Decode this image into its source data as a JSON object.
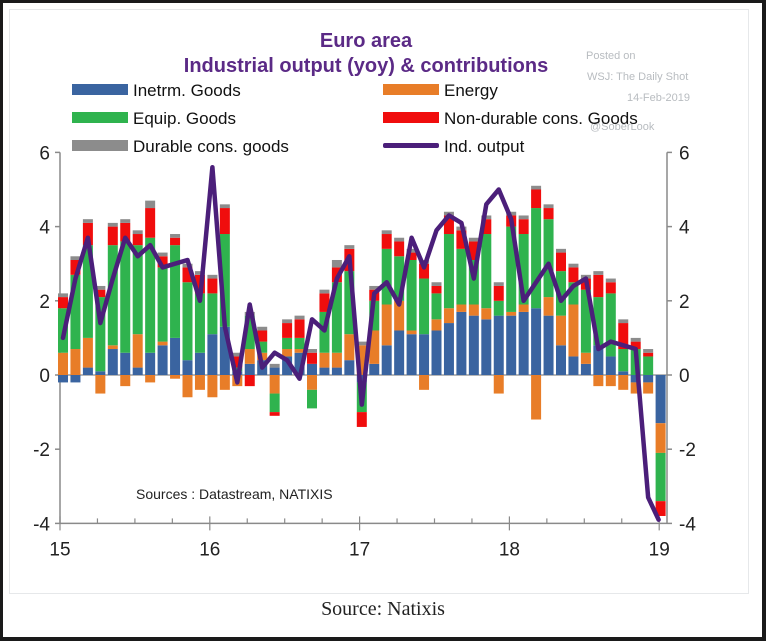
{
  "caption": "Source: Natixis",
  "watermark": {
    "line1": "Posted on",
    "line2": "WSJ: The Daily Shot",
    "line3": "14-Feb-2019",
    "line4": "@SoberLook"
  },
  "colors": {
    "intermediate": "#3a64a0",
    "energy": "#e87d28",
    "equipment": "#2fb34e",
    "nondurable": "#f00d0d",
    "durable": "#8c8c8c",
    "output_line": "#4b1f7a",
    "axis": "#8a8a8a",
    "title": "#5b2a86"
  },
  "chart_data": {
    "type": "bar",
    "stacked": true,
    "title": "Euro area",
    "subtitle": "Industrial output (yoy) & contributions",
    "source_note": "Sources : Datastream, NATIXIS",
    "xlabel": "",
    "ylabel": "",
    "ylim": [
      -4,
      6
    ],
    "yticks": [
      -4,
      -2,
      0,
      2,
      4,
      6
    ],
    "ytick_labels": [
      "-4",
      "-2",
      "0",
      "2",
      "4",
      "6"
    ],
    "xtick_labels": [
      "15",
      "16",
      "17",
      "18",
      "19"
    ],
    "x_range": [
      "2015-01",
      "2019-01"
    ],
    "grid": false,
    "legend_position": "top",
    "legend": [
      {
        "key": "intermediate",
        "label": "Inetrm. Goods",
        "kind": "bar"
      },
      {
        "key": "energy",
        "label": "Energy",
        "kind": "bar"
      },
      {
        "key": "equipment",
        "label": "Equip. Goods",
        "kind": "bar"
      },
      {
        "key": "nondurable",
        "label": "Non-durable cons. Goods",
        "kind": "bar"
      },
      {
        "key": "durable",
        "label": "Durable cons. goods",
        "kind": "bar"
      },
      {
        "key": "output",
        "label": "Ind. output",
        "kind": "line"
      }
    ],
    "categories": [
      "2015-01",
      "2015-02",
      "2015-03",
      "2015-04",
      "2015-05",
      "2015-06",
      "2015-07",
      "2015-08",
      "2015-09",
      "2015-10",
      "2015-11",
      "2015-12",
      "2016-01",
      "2016-02",
      "2016-03",
      "2016-04",
      "2016-05",
      "2016-06",
      "2016-07",
      "2016-08",
      "2016-09",
      "2016-10",
      "2016-11",
      "2016-12",
      "2017-01",
      "2017-02",
      "2017-03",
      "2017-04",
      "2017-05",
      "2017-06",
      "2017-07",
      "2017-08",
      "2017-09",
      "2017-10",
      "2017-11",
      "2017-12",
      "2018-01",
      "2018-02",
      "2018-03",
      "2018-04",
      "2018-05",
      "2018-06",
      "2018-07",
      "2018-08",
      "2018-09",
      "2018-10",
      "2018-11",
      "2018-12"
    ],
    "series": [
      {
        "name": "Inetrm. Goods",
        "key": "intermediate",
        "values": [
          -0.2,
          -0.2,
          0.2,
          0.1,
          0.7,
          0.6,
          0.2,
          0.6,
          0.8,
          1.0,
          0.4,
          0.6,
          1.1,
          1.3,
          0.1,
          0.3,
          0.4,
          0.2,
          0.5,
          0.6,
          0.3,
          0.2,
          0.2,
          0.4,
          -0.2,
          0.3,
          0.8,
          1.2,
          1.1,
          1.1,
          1.2,
          1.4,
          1.7,
          1.6,
          1.5,
          1.6,
          1.6,
          1.7,
          1.8,
          1.6,
          0.8,
          0.5,
          0.3,
          0.8,
          0.5,
          0.1,
          -0.2,
          -0.2
        ]
      },
      {
        "name": "Energy",
        "key": "energy",
        "values": [
          0.6,
          0.7,
          0.8,
          -0.5,
          0.1,
          -0.3,
          0.9,
          -0.2,
          0.1,
          -0.1,
          -0.6,
          -0.4,
          -0.6,
          -0.4,
          -0.3,
          0.4,
          0.2,
          -0.5,
          0.2,
          0.1,
          -0.4,
          0.4,
          0.4,
          0.7,
          0.8,
          0.9,
          1.1,
          0.8,
          0.1,
          -0.4,
          0.3,
          0.4,
          0.2,
          0.3,
          0.3,
          -0.5,
          0.1,
          0.2,
          -1.2,
          0.5,
          0.8,
          1.4,
          0.3,
          -0.3,
          -0.3,
          -0.4,
          -0.3,
          -0.3
        ]
      },
      {
        "name": "Equip. Goods",
        "key": "equipment",
        "values": [
          1.2,
          2.0,
          2.5,
          2.0,
          2.7,
          3.0,
          2.4,
          3.1,
          2.0,
          2.5,
          2.1,
          1.6,
          1.1,
          2.5,
          0.1,
          0.9,
          0.3,
          -0.5,
          0.3,
          0.3,
          -0.5,
          1.1,
          1.9,
          1.7,
          -0.8,
          0.8,
          1.5,
          1.2,
          1.9,
          1.5,
          0.7,
          2.0,
          1.5,
          1.2,
          2.0,
          0.4,
          2.3,
          1.9,
          2.7,
          2.1,
          1.2,
          0.6,
          1.7,
          1.3,
          1.7,
          0.6,
          0.7,
          0.5
        ]
      },
      {
        "name": "Non-durable cons. Goods",
        "key": "nondurable",
        "values": [
          0.3,
          0.4,
          0.6,
          0.2,
          0.5,
          0.5,
          0.3,
          0.8,
          0.3,
          0.2,
          0.4,
          0.5,
          0.4,
          0.7,
          0.3,
          -0.3,
          0.3,
          -0.1,
          0.4,
          0.5,
          0.3,
          0.5,
          0.4,
          0.6,
          -0.4,
          0.3,
          0.4,
          0.4,
          0.2,
          0.4,
          0.2,
          0.5,
          0.5,
          0.5,
          0.4,
          0.4,
          0.3,
          0.4,
          0.5,
          0.3,
          0.5,
          0.4,
          0.3,
          0.6,
          0.3,
          0.7,
          0.2,
          0.1
        ]
      },
      {
        "name": "Durable cons. goods",
        "key": "durable",
        "values": [
          0.1,
          0.1,
          0.1,
          0.1,
          0.1,
          0.1,
          0.1,
          0.2,
          0.1,
          0.1,
          0.1,
          0.1,
          0.1,
          0.1,
          0.1,
          0.1,
          0.1,
          0.1,
          0.1,
          0.1,
          0.1,
          0.1,
          0.2,
          0.1,
          0.1,
          0.1,
          0.1,
          0.1,
          0.1,
          0.1,
          0.1,
          0.1,
          0.1,
          0.1,
          0.1,
          0.1,
          0.1,
          0.1,
          0.1,
          0.1,
          0.1,
          0.1,
          0.1,
          0.1,
          0.1,
          0.1,
          0.1,
          0.1
        ]
      },
      {
        "name": "Ind. output",
        "key": "output",
        "type": "line",
        "values": [
          1.0,
          2.6,
          3.7,
          1.4,
          2.6,
          3.7,
          3.2,
          3.5,
          2.9,
          3.0,
          3.1,
          2.0,
          5.6,
          1.3,
          -0.2,
          1.9,
          0.2,
          0.6,
          0.4,
          -0.1,
          1.5,
          1.2,
          2.6,
          3.2,
          -0.8,
          2.2,
          2.5,
          1.9,
          3.7,
          2.9,
          3.9,
          4.3,
          4.1,
          2.6,
          4.6,
          5.0,
          4.2,
          2.0,
          2.5,
          3.0,
          2.0,
          2.4,
          2.6,
          0.7,
          0.9,
          0.8,
          0.7,
          -3.3
        ]
      },
      {
        "name": "Ind. output (Jan-19 extension)",
        "key": "output_tail",
        "type": "line",
        "x": [
          "2018-12",
          "2019-01"
        ],
        "values": [
          -3.3,
          -3.9
        ]
      }
    ],
    "extra_bar": {
      "category": "2019-01",
      "intermediate": -1.3,
      "energy": -0.8,
      "equipment": -1.3,
      "nondurable": -0.4,
      "durable": 0.0
    }
  }
}
